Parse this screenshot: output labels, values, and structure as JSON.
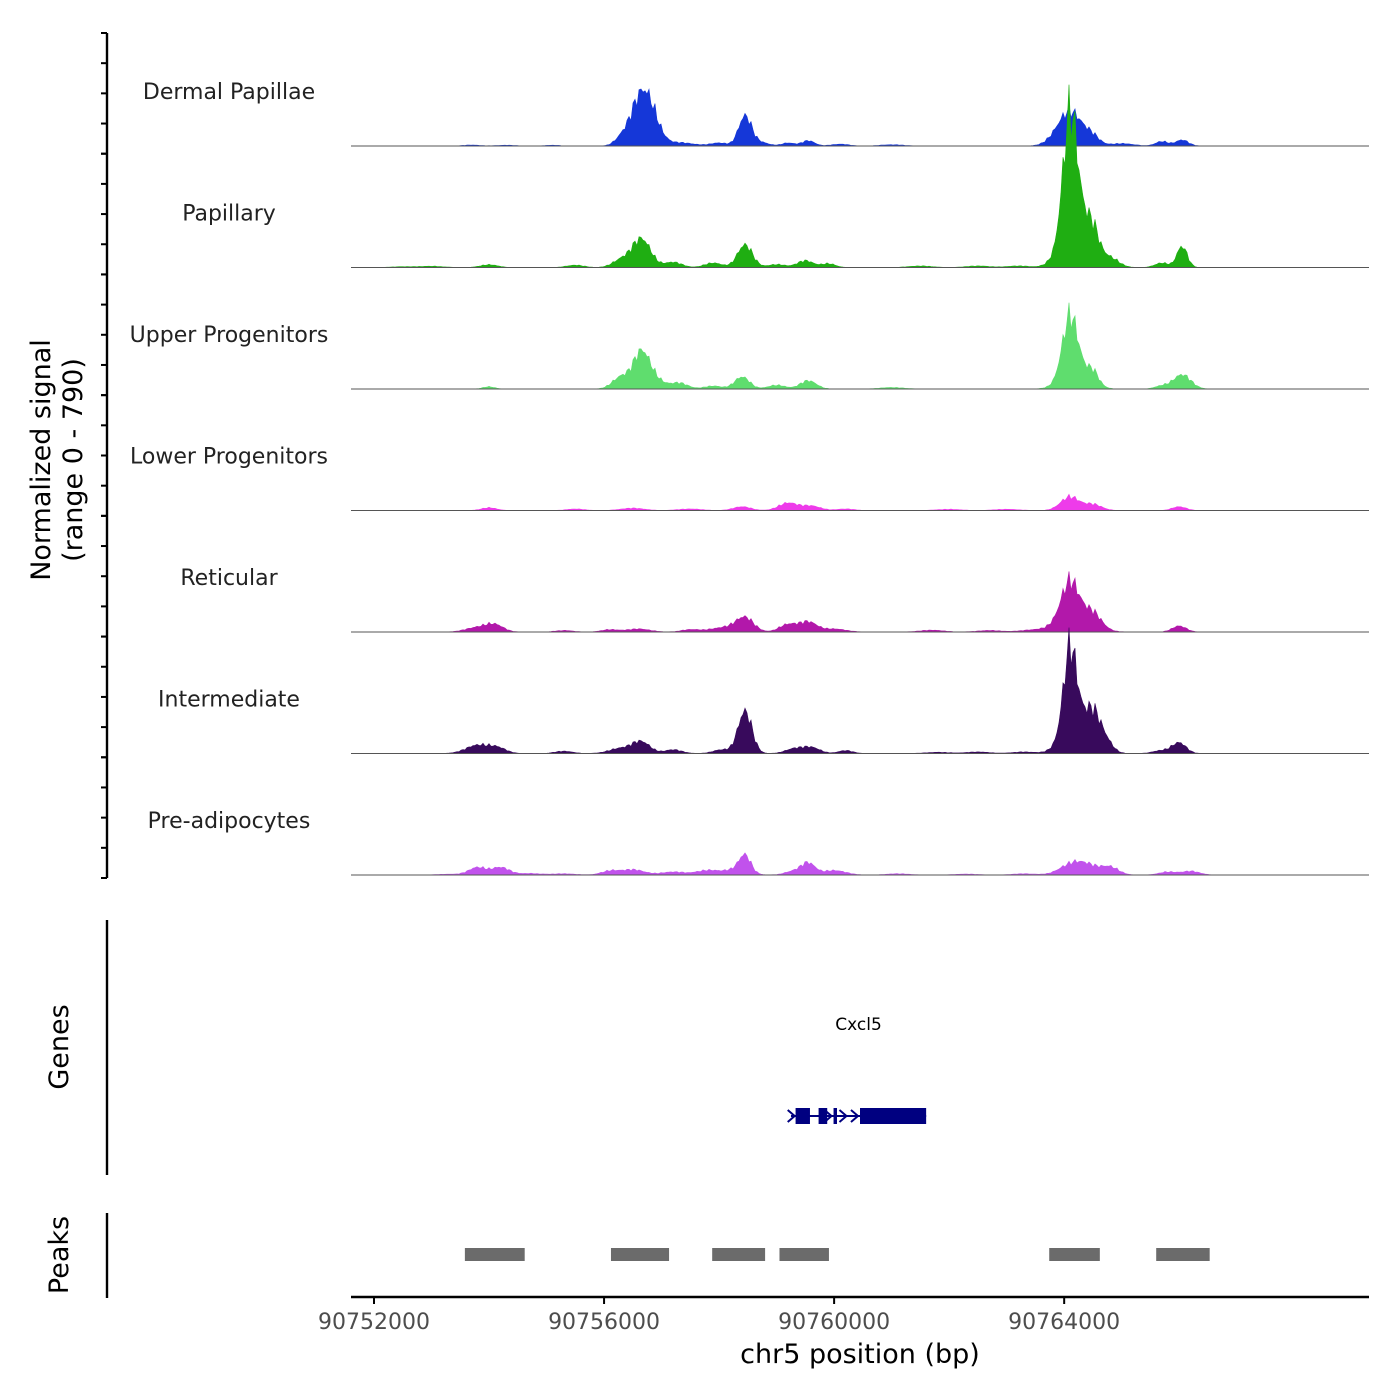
{
  "chart_data": {
    "type": "area",
    "title": "",
    "ylabel_line1": "Normalized signal",
    "ylabel_line2": "(range 0 - 790)",
    "y_range": [
      0,
      790
    ],
    "xlabel": "chr5 position (bp)",
    "x_range": [
      90751600,
      90769300
    ],
    "x_ticks": [
      90752000,
      90756000,
      90760000,
      90764000
    ],
    "x_tick_labels": [
      "90752000",
      "90756000",
      "90760000",
      "90764000"
    ],
    "tracks": [
      {
        "name": "Dermal Papillae",
        "color": "#1537d8",
        "peaks": [
          [
            90753700,
            6,
            150
          ],
          [
            90754300,
            5,
            150
          ],
          [
            90755100,
            5,
            120
          ],
          [
            90756300,
            40,
            120
          ],
          [
            90756650,
            330,
            180
          ],
          [
            90756850,
            90,
            150
          ],
          [
            90757300,
            22,
            250
          ],
          [
            90758000,
            20,
            150
          ],
          [
            90758450,
            195,
            110
          ],
          [
            90758700,
            25,
            150
          ],
          [
            90759200,
            20,
            110
          ],
          [
            90759550,
            35,
            110
          ],
          [
            90760100,
            12,
            150
          ],
          [
            90761000,
            8,
            200
          ],
          [
            90764100,
            230,
            220
          ],
          [
            90764500,
            45,
            120
          ],
          [
            90765000,
            16,
            200
          ],
          [
            90765700,
            30,
            110
          ],
          [
            90766050,
            40,
            110
          ]
        ]
      },
      {
        "name": "Papillary",
        "color": "#1fae12",
        "peaks": [
          [
            90752500,
            5,
            200
          ],
          [
            90753000,
            8,
            200
          ],
          [
            90754000,
            18,
            150
          ],
          [
            90755500,
            15,
            150
          ],
          [
            90756300,
            50,
            150
          ],
          [
            90756650,
            190,
            160
          ],
          [
            90757200,
            35,
            150
          ],
          [
            90757900,
            30,
            150
          ],
          [
            90758450,
            150,
            130
          ],
          [
            90759000,
            20,
            150
          ],
          [
            90759500,
            45,
            140
          ],
          [
            90759900,
            25,
            120
          ],
          [
            90761500,
            10,
            200
          ],
          [
            90762500,
            10,
            200
          ],
          [
            90763200,
            10,
            200
          ],
          [
            90764100,
            720,
            120
          ],
          [
            90764200,
            350,
            230
          ],
          [
            90764500,
            150,
            110
          ],
          [
            90764800,
            60,
            150
          ],
          [
            90765700,
            30,
            120
          ],
          [
            90766050,
            140,
            90
          ]
        ]
      },
      {
        "name": "Upper Progenitors",
        "color": "#5fdd6e",
        "peaks": [
          [
            90754000,
            15,
            100
          ],
          [
            90756300,
            80,
            150
          ],
          [
            90756650,
            240,
            140
          ],
          [
            90756900,
            55,
            150
          ],
          [
            90757300,
            40,
            150
          ],
          [
            90757900,
            20,
            150
          ],
          [
            90758400,
            80,
            130
          ],
          [
            90759000,
            25,
            150
          ],
          [
            90759550,
            55,
            140
          ],
          [
            90761000,
            10,
            200
          ],
          [
            90764100,
            380,
            130
          ],
          [
            90764200,
            120,
            230
          ],
          [
            90764500,
            80,
            100
          ],
          [
            90765700,
            20,
            120
          ],
          [
            90766050,
            95,
            150
          ]
        ]
      },
      {
        "name": "Lower Progenitors",
        "color": "#ee3bea",
        "peaks": [
          [
            90754000,
            18,
            130
          ],
          [
            90755500,
            10,
            150
          ],
          [
            90756500,
            15,
            200
          ],
          [
            90757500,
            10,
            200
          ],
          [
            90758400,
            25,
            150
          ],
          [
            90759200,
            50,
            160
          ],
          [
            90759600,
            30,
            160
          ],
          [
            90760200,
            10,
            150
          ],
          [
            90762000,
            8,
            200
          ],
          [
            90763000,
            8,
            200
          ],
          [
            90764100,
            90,
            160
          ],
          [
            90764500,
            40,
            150
          ],
          [
            90766000,
            25,
            120
          ]
        ]
      },
      {
        "name": "Reticular",
        "color": "#b218aa",
        "peaks": [
          [
            90753800,
            30,
            200
          ],
          [
            90754100,
            45,
            150
          ],
          [
            90755300,
            10,
            150
          ],
          [
            90756100,
            15,
            150
          ],
          [
            90756600,
            20,
            200
          ],
          [
            90757500,
            15,
            150
          ],
          [
            90758100,
            30,
            250
          ],
          [
            90758450,
            90,
            150
          ],
          [
            90759200,
            50,
            150
          ],
          [
            90759550,
            65,
            150
          ],
          [
            90760000,
            20,
            200
          ],
          [
            90761700,
            12,
            200
          ],
          [
            90762700,
            10,
            200
          ],
          [
            90763400,
            10,
            200
          ],
          [
            90764100,
            250,
            150
          ],
          [
            90764150,
            90,
            300
          ],
          [
            90764500,
            90,
            150
          ],
          [
            90766000,
            40,
            120
          ]
        ]
      },
      {
        "name": "Intermediate",
        "color": "#380a5c",
        "peaks": [
          [
            90753800,
            55,
            200
          ],
          [
            90754150,
            35,
            150
          ],
          [
            90755300,
            15,
            150
          ],
          [
            90756300,
            35,
            200
          ],
          [
            90756650,
            75,
            150
          ],
          [
            90757200,
            25,
            150
          ],
          [
            90758050,
            25,
            150
          ],
          [
            90758450,
            280,
            120
          ],
          [
            90759300,
            30,
            150
          ],
          [
            90759600,
            40,
            150
          ],
          [
            90760200,
            20,
            120
          ],
          [
            90761800,
            8,
            200
          ],
          [
            90762500,
            10,
            200
          ],
          [
            90763300,
            10,
            200
          ],
          [
            90764100,
            500,
            110
          ],
          [
            90764200,
            240,
            220
          ],
          [
            90764500,
            180,
            120
          ],
          [
            90764700,
            90,
            130
          ],
          [
            90765700,
            20,
            150
          ],
          [
            90766000,
            70,
            120
          ]
        ]
      },
      {
        "name": "Pre-adipocytes",
        "color": "#c152ec",
        "peaks": [
          [
            90753300,
            5,
            200
          ],
          [
            90753800,
            50,
            150
          ],
          [
            90754200,
            50,
            150
          ],
          [
            90754700,
            10,
            200
          ],
          [
            90755300,
            8,
            200
          ],
          [
            90756100,
            25,
            150
          ],
          [
            90756500,
            35,
            200
          ],
          [
            90757200,
            20,
            200
          ],
          [
            90757800,
            30,
            200
          ],
          [
            90758450,
            110,
            100
          ],
          [
            90758300,
            35,
            200
          ],
          [
            90759550,
            75,
            120
          ],
          [
            90759300,
            25,
            150
          ],
          [
            90760000,
            30,
            200
          ],
          [
            90761100,
            8,
            200
          ],
          [
            90762300,
            6,
            200
          ],
          [
            90763300,
            8,
            200
          ],
          [
            90764100,
            60,
            200
          ],
          [
            90764400,
            60,
            200
          ],
          [
            90764800,
            50,
            150
          ],
          [
            90765800,
            20,
            150
          ],
          [
            90766200,
            25,
            150
          ]
        ]
      }
    ],
    "genes_label": "Genes",
    "genes": [
      {
        "name": "Cxcl5",
        "color": "#000080",
        "start": 90759250,
        "end": 90761600,
        "strand": "+",
        "exons": [
          [
            90759330,
            90759580
          ],
          [
            90759730,
            90759880
          ],
          [
            90759990,
            90760050
          ],
          [
            90760450,
            90761600
          ]
        ],
        "arrows": [
          90759280,
          90759920,
          90760180,
          90760380,
          90761540
        ]
      }
    ],
    "peaks_label": "Peaks",
    "peaks_color": "#6b6b6b",
    "peak_regions": [
      [
        90753580,
        90754620
      ],
      [
        90756120,
        90757130
      ],
      [
        90757880,
        90758800
      ],
      [
        90759050,
        90759910
      ],
      [
        90763740,
        90764620
      ],
      [
        90765600,
        90766530
      ]
    ]
  }
}
